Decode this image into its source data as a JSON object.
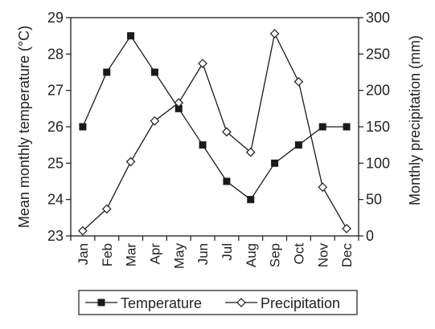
{
  "chart_data": {
    "type": "line",
    "categories": [
      "Jan",
      "Feb",
      "Mar",
      "Apr",
      "May",
      "Jun",
      "Jul",
      "Aug",
      "Sep",
      "Oct",
      "Nov",
      "Dec"
    ],
    "series": [
      {
        "name": "Temperature",
        "axis": "left",
        "marker": "filled-square",
        "values": [
          26,
          27.5,
          28.5,
          27.5,
          26.5,
          25.5,
          24.5,
          24,
          25,
          25.5,
          26,
          26
        ]
      },
      {
        "name": "Precipitation",
        "axis": "right",
        "marker": "open-diamond",
        "values": [
          7,
          37,
          102,
          158,
          183,
          237,
          143,
          115,
          278,
          212,
          67,
          10
        ]
      }
    ],
    "ylabel_left": "Mean monthly temperature (°C)",
    "ylabel_right": "Monthly precipitation (mm)",
    "ylim_left": [
      23,
      29
    ],
    "ylim_right": [
      0,
      300
    ],
    "yticks_left": [
      "23",
      "24",
      "25",
      "26",
      "27",
      "28",
      "29"
    ],
    "yticks_right": [
      "0",
      "50",
      "100",
      "150",
      "200",
      "250",
      "300"
    ],
    "grid": false,
    "legend_placement": "bottom",
    "colors": {
      "line": "#1a1a1a",
      "frame": "#1a1a1a"
    }
  }
}
